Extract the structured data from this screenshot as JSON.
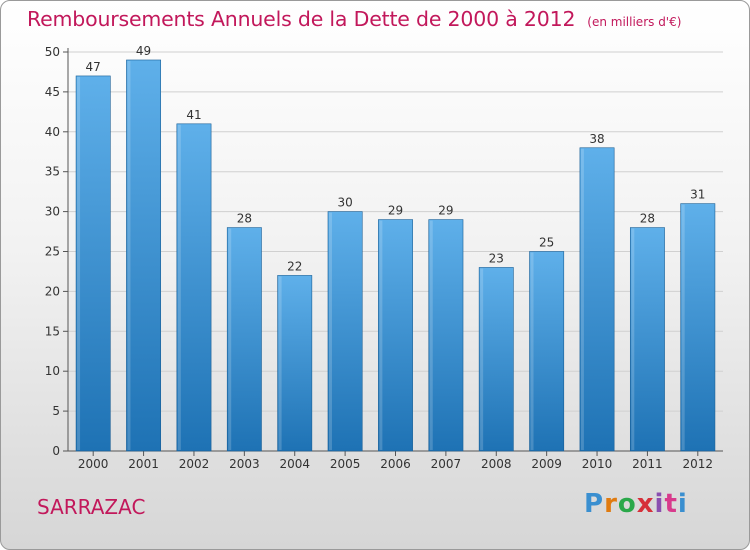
{
  "title": "Remboursements Annuels de la Dette de 2000 à 2012",
  "unit": "(en milliers d'€)",
  "commune": "SARRAZAC",
  "logo": {
    "text": "Proxiti",
    "colors": [
      "#3a8fd0",
      "#e07b10",
      "#2aa84a",
      "#d6303a",
      "#8a4fb0",
      "#d83a8c",
      "#3a8fd0"
    ]
  },
  "colors": {
    "bar_top": "#5fb0ea",
    "bar_bottom": "#1e72b4",
    "title": "#c2185b"
  },
  "chart_data": {
    "type": "bar",
    "title": "Remboursements Annuels de la Dette de 2000 à 2012",
    "categories": [
      "2000",
      "2001",
      "2002",
      "2003",
      "2004",
      "2005",
      "2006",
      "2007",
      "2008",
      "2009",
      "2010",
      "2011",
      "2012"
    ],
    "values": [
      47,
      49,
      41,
      28,
      22,
      30,
      29,
      29,
      23,
      25,
      38,
      28,
      31
    ],
    "xlabel": "",
    "ylabel": "",
    "ylim": [
      0,
      50
    ],
    "yticks": [
      0,
      5,
      10,
      15,
      20,
      25,
      30,
      35,
      40,
      45,
      50
    ],
    "grid": true,
    "legend": "none"
  }
}
